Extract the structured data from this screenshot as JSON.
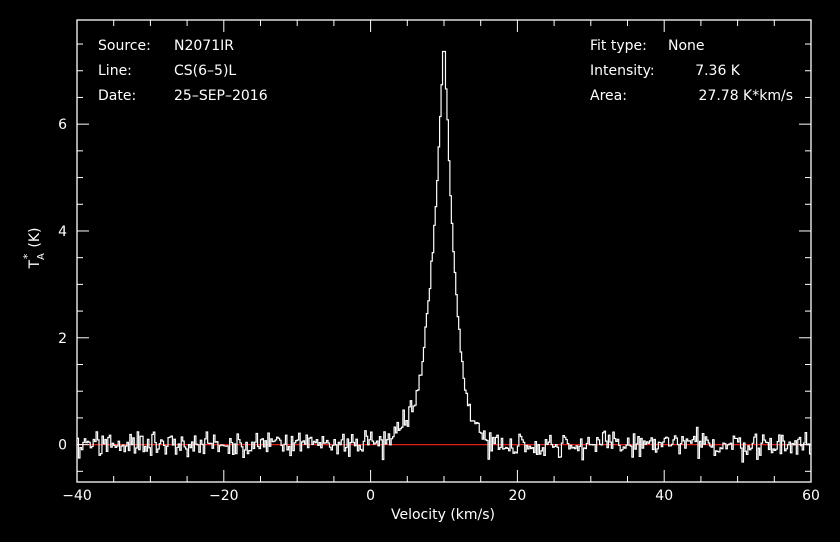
{
  "chart_data": {
    "type": "line",
    "xlabel": "Velocity (km/s)",
    "ylabel": "T",
    "ylabel_sup": "*",
    "ylabel_sub": "A",
    "ylabel_unit": "(K)",
    "xlim": [
      -40,
      60
    ],
    "ylim": [
      -0.7,
      7.95
    ],
    "xticks": [
      -40,
      -20,
      0,
      20,
      40,
      60
    ],
    "yticks": [
      0,
      2,
      4,
      6
    ],
    "xtick_labels": [
      "−40",
      "−20",
      "0",
      "20",
      "40",
      "60"
    ],
    "ytick_labels": [
      "0",
      "2",
      "4",
      "6"
    ],
    "baseline": 0,
    "series": [
      {
        "kind": "spectrum",
        "color": "#ffffff",
        "x_range": [
          -40,
          60
        ],
        "n_channels": 500,
        "noise_rms": 0.12,
        "peak_velocity": 10.0,
        "peak_intensity": 7.36,
        "profile_points": [
          [
            -40,
            0.0
          ],
          [
            0,
            0.02
          ],
          [
            3,
            0.15
          ],
          [
            5,
            0.5
          ],
          [
            6,
            0.8
          ],
          [
            7,
            1.4
          ],
          [
            8,
            2.8
          ],
          [
            9,
            4.6
          ],
          [
            9.6,
            6.4
          ],
          [
            10.0,
            7.36
          ],
          [
            10.4,
            6.4
          ],
          [
            11,
            4.2
          ],
          [
            12,
            2.2
          ],
          [
            13,
            1.0
          ],
          [
            14,
            0.45
          ],
          [
            15,
            0.2
          ],
          [
            16,
            0.05
          ],
          [
            18,
            0.0
          ],
          [
            60,
            0.0
          ]
        ]
      }
    ],
    "baseline_color": "#e0201c"
  },
  "info": {
    "left": [
      {
        "label": "Source:",
        "value": "N2071IR"
      },
      {
        "label": "Line:",
        "value": "CS(6–5)L"
      },
      {
        "label": "Date:",
        "value": "25–SEP–2016"
      }
    ],
    "right": [
      {
        "label": "Fit type:",
        "value": "None"
      },
      {
        "label": "Intensity:",
        "value": "7.36 K"
      },
      {
        "label": "Area:",
        "value": "27.78 K*km/s"
      }
    ]
  }
}
